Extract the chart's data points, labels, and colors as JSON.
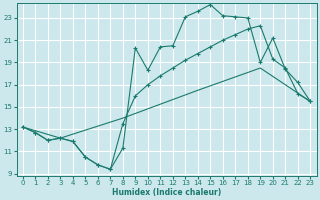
{
  "xlabel": "Humidex (Indice chaleur)",
  "background_color": "#cce8ec",
  "line_color": "#1a7a6e",
  "grid_color": "#ffffff",
  "xlim": [
    -0.5,
    23.5
  ],
  "ylim": [
    8.8,
    24.3
  ],
  "yticks": [
    9,
    11,
    13,
    15,
    17,
    19,
    21,
    23
  ],
  "xticks": [
    0,
    1,
    2,
    3,
    4,
    5,
    6,
    7,
    8,
    9,
    10,
    11,
    12,
    13,
    14,
    15,
    16,
    17,
    18,
    19,
    20,
    21,
    22,
    23
  ],
  "curve1_x": [
    0,
    1,
    2,
    3,
    4,
    5,
    6,
    7,
    8,
    9,
    10,
    11,
    12,
    13,
    14,
    15,
    16,
    17,
    18,
    19,
    20,
    21,
    22,
    23
  ],
  "curve1_y": [
    13.2,
    12.7,
    12.0,
    12.2,
    11.9,
    10.5,
    9.8,
    9.4,
    11.3,
    20.3,
    18.3,
    20.4,
    20.5,
    23.1,
    23.6,
    24.2,
    23.2,
    23.1,
    23.0,
    19.0,
    21.2,
    18.4,
    17.2,
    15.5
  ],
  "curve2_x": [
    0,
    1,
    2,
    3,
    4,
    5,
    6,
    7,
    8,
    9,
    10,
    11,
    12,
    13,
    14,
    15,
    16,
    17,
    18,
    19,
    20,
    21,
    22,
    23
  ],
  "curve2_y": [
    13.2,
    12.7,
    12.0,
    12.2,
    11.9,
    10.5,
    9.8,
    9.4,
    13.5,
    16.0,
    17.0,
    17.8,
    18.5,
    19.2,
    19.8,
    20.4,
    21.0,
    21.5,
    22.0,
    22.3,
    19.3,
    18.5,
    16.2,
    15.5
  ],
  "curve3_x": [
    0,
    3,
    8,
    14,
    19,
    23
  ],
  "curve3_y": [
    13.2,
    12.2,
    14.0,
    16.5,
    18.5,
    15.5
  ]
}
